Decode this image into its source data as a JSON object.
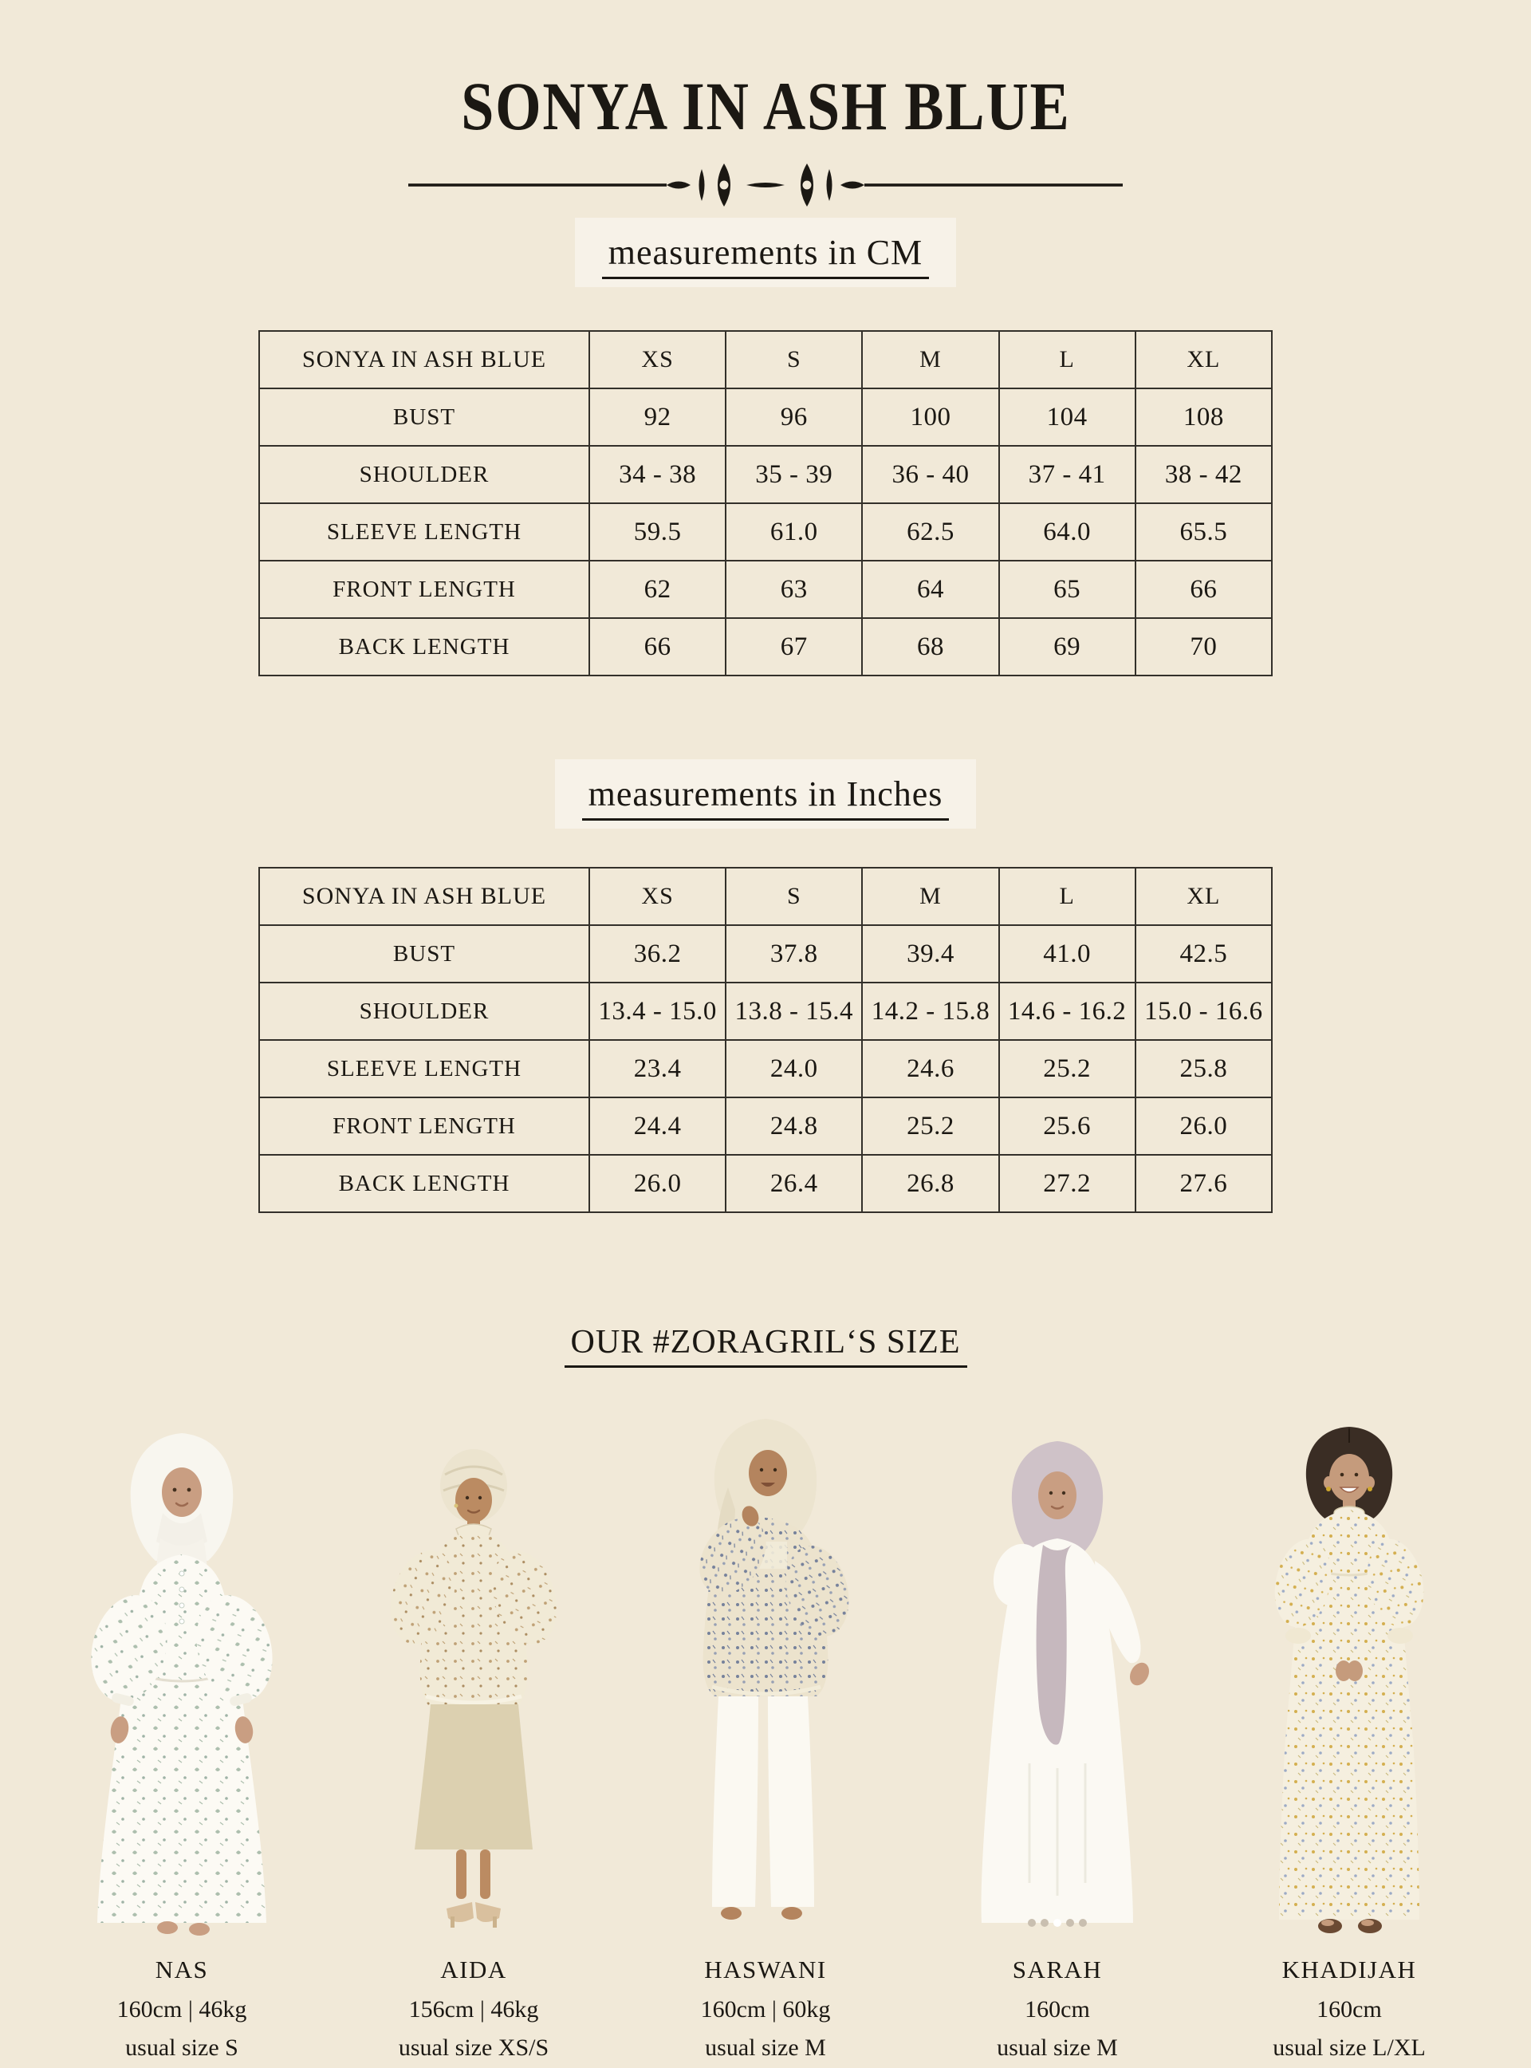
{
  "page": {
    "title": "SONYA IN ASH BLUE"
  },
  "palette": {
    "background": "#f1e9d8",
    "text": "#1b1813",
    "table_border": "#33302a",
    "heading_highlight": "#ffffff",
    "divider_ink": "#1b1813"
  },
  "headings": {
    "cm": "measurements in CM",
    "inches": "measurements in Inches",
    "models": "OUR #ZORAGRIL‘S SIZE"
  },
  "size_chart_cm": {
    "header": [
      "SONYA IN ASH BLUE",
      "XS",
      "S",
      "M",
      "L",
      "XL"
    ],
    "rows": [
      {
        "label": "BUST",
        "values": [
          "92",
          "96",
          "100",
          "104",
          "108"
        ]
      },
      {
        "label": "SHOULDER",
        "values": [
          "34 - 38",
          "35 - 39",
          "36 - 40",
          "37 - 41",
          "38 - 42"
        ]
      },
      {
        "label": "SLEEVE LENGTH",
        "values": [
          "59.5",
          "61.0",
          "62.5",
          "64.0",
          "65.5"
        ]
      },
      {
        "label": "FRONT LENGTH",
        "values": [
          "62",
          "63",
          "64",
          "65",
          "66"
        ]
      },
      {
        "label": "BACK LENGTH",
        "values": [
          "66",
          "67",
          "68",
          "69",
          "70"
        ]
      }
    ]
  },
  "size_chart_inches": {
    "header": [
      "SONYA IN ASH BLUE",
      "XS",
      "S",
      "M",
      "L",
      "XL"
    ],
    "rows": [
      {
        "label": "BUST",
        "values": [
          "36.2",
          "37.8",
          "39.4",
          "41.0",
          "42.5"
        ]
      },
      {
        "label": "SHOULDER",
        "values": [
          "13.4 - 15.0",
          "13.8 - 15.4",
          "14.2 - 15.8",
          "14.6 - 16.2",
          "15.0 - 16.6"
        ]
      },
      {
        "label": "SLEEVE LENGTH",
        "values": [
          "23.4",
          "24.0",
          "24.6",
          "25.2",
          "25.8"
        ]
      },
      {
        "label": "FRONT LENGTH",
        "values": [
          "24.4",
          "24.8",
          "25.2",
          "25.6",
          "26.0"
        ]
      },
      {
        "label": "BACK LENGTH",
        "values": [
          "26.0",
          "26.4",
          "26.8",
          "27.2",
          "27.6"
        ]
      }
    ]
  },
  "models": [
    {
      "name": "NAS",
      "stats": "160cm | 46kg",
      "size": "usual size S"
    },
    {
      "name": "AIDA",
      "stats": "156cm | 46kg",
      "size": "usual size XS/S"
    },
    {
      "name": "HASWANI",
      "stats": "160cm | 60kg",
      "size": "usual size M"
    },
    {
      "name": "SARAH",
      "stats": "160cm",
      "size": "usual size M"
    },
    {
      "name": "KHADIJAH",
      "stats": "160cm",
      "size": "usual size L/XL"
    }
  ],
  "carousel": {
    "dot_count": 5,
    "active_dot": 3
  }
}
